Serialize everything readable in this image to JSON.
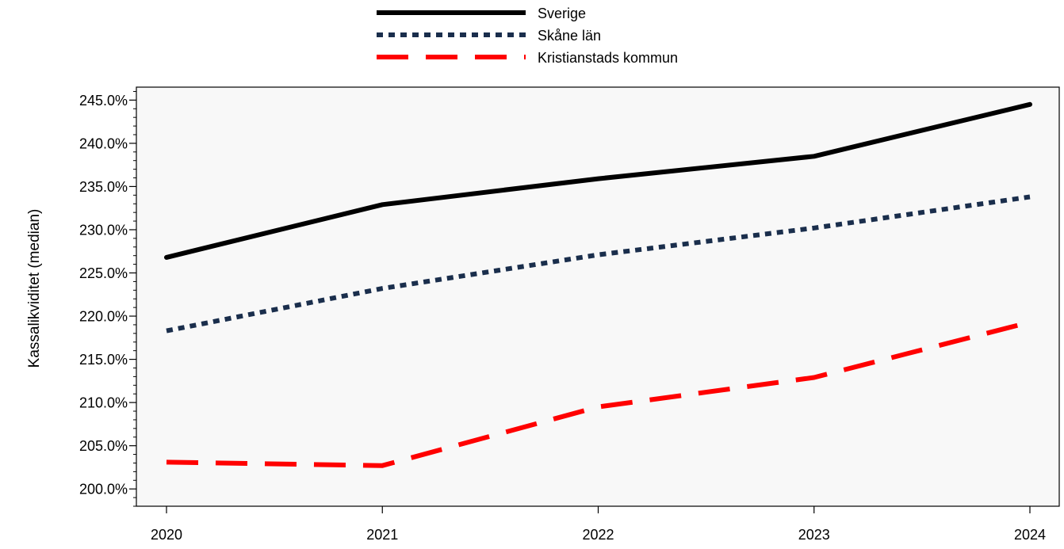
{
  "chart_data": {
    "type": "line",
    "title": "",
    "xlabel": "",
    "ylabel": "Kassalikviditet (median)",
    "x": [
      "2020",
      "2021",
      "2022",
      "2023",
      "2024"
    ],
    "ylim": [
      198.0,
      246.5
    ],
    "yticks": [
      200,
      205,
      210,
      215,
      220,
      225,
      230,
      235,
      240,
      245
    ],
    "ytick_labels": [
      "200.0%",
      "205.0%",
      "210.0%",
      "215.0%",
      "220.0%",
      "225.0%",
      "230.0%",
      "235.0%",
      "240.0%",
      "245.0%"
    ],
    "grid": false,
    "legend_position": "top-center",
    "series": [
      {
        "name": "Sverige",
        "values": [
          226.8,
          232.9,
          235.9,
          238.5,
          244.5
        ],
        "color": "#000000",
        "style": "solid"
      },
      {
        "name": "Skåne län",
        "values": [
          218.3,
          223.2,
          227.1,
          230.2,
          233.8
        ],
        "color": "#1a2e4c",
        "style": "dotted"
      },
      {
        "name": "Kristianstads kommun",
        "values": [
          203.1,
          202.7,
          209.5,
          212.9,
          219.3
        ],
        "color": "#ff0000",
        "style": "dashed"
      }
    ]
  }
}
